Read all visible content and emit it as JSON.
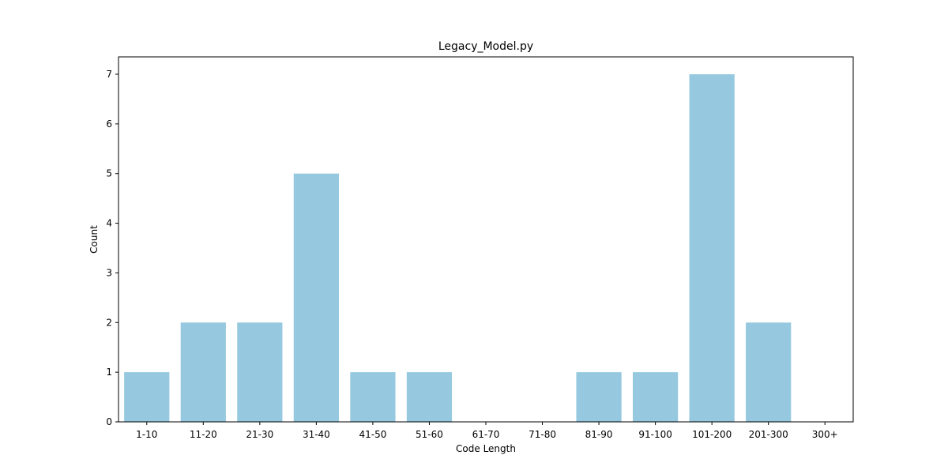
{
  "chart_data": {
    "type": "bar",
    "title": "Legacy_Model.py",
    "xlabel": "Code Length",
    "ylabel": "Count",
    "categories": [
      "1-10",
      "11-20",
      "21-30",
      "31-40",
      "41-50",
      "51-60",
      "61-70",
      "71-80",
      "81-90",
      "91-100",
      "101-200",
      "201-300",
      "300+"
    ],
    "values": [
      1,
      2,
      2,
      5,
      1,
      1,
      0,
      0,
      1,
      1,
      7,
      2,
      0
    ],
    "ylim": [
      0,
      7.35
    ],
    "yticks": [
      0,
      1,
      2,
      3,
      4,
      5,
      6,
      7
    ],
    "grid": false,
    "colors": {
      "bar": "#96c9df"
    }
  }
}
